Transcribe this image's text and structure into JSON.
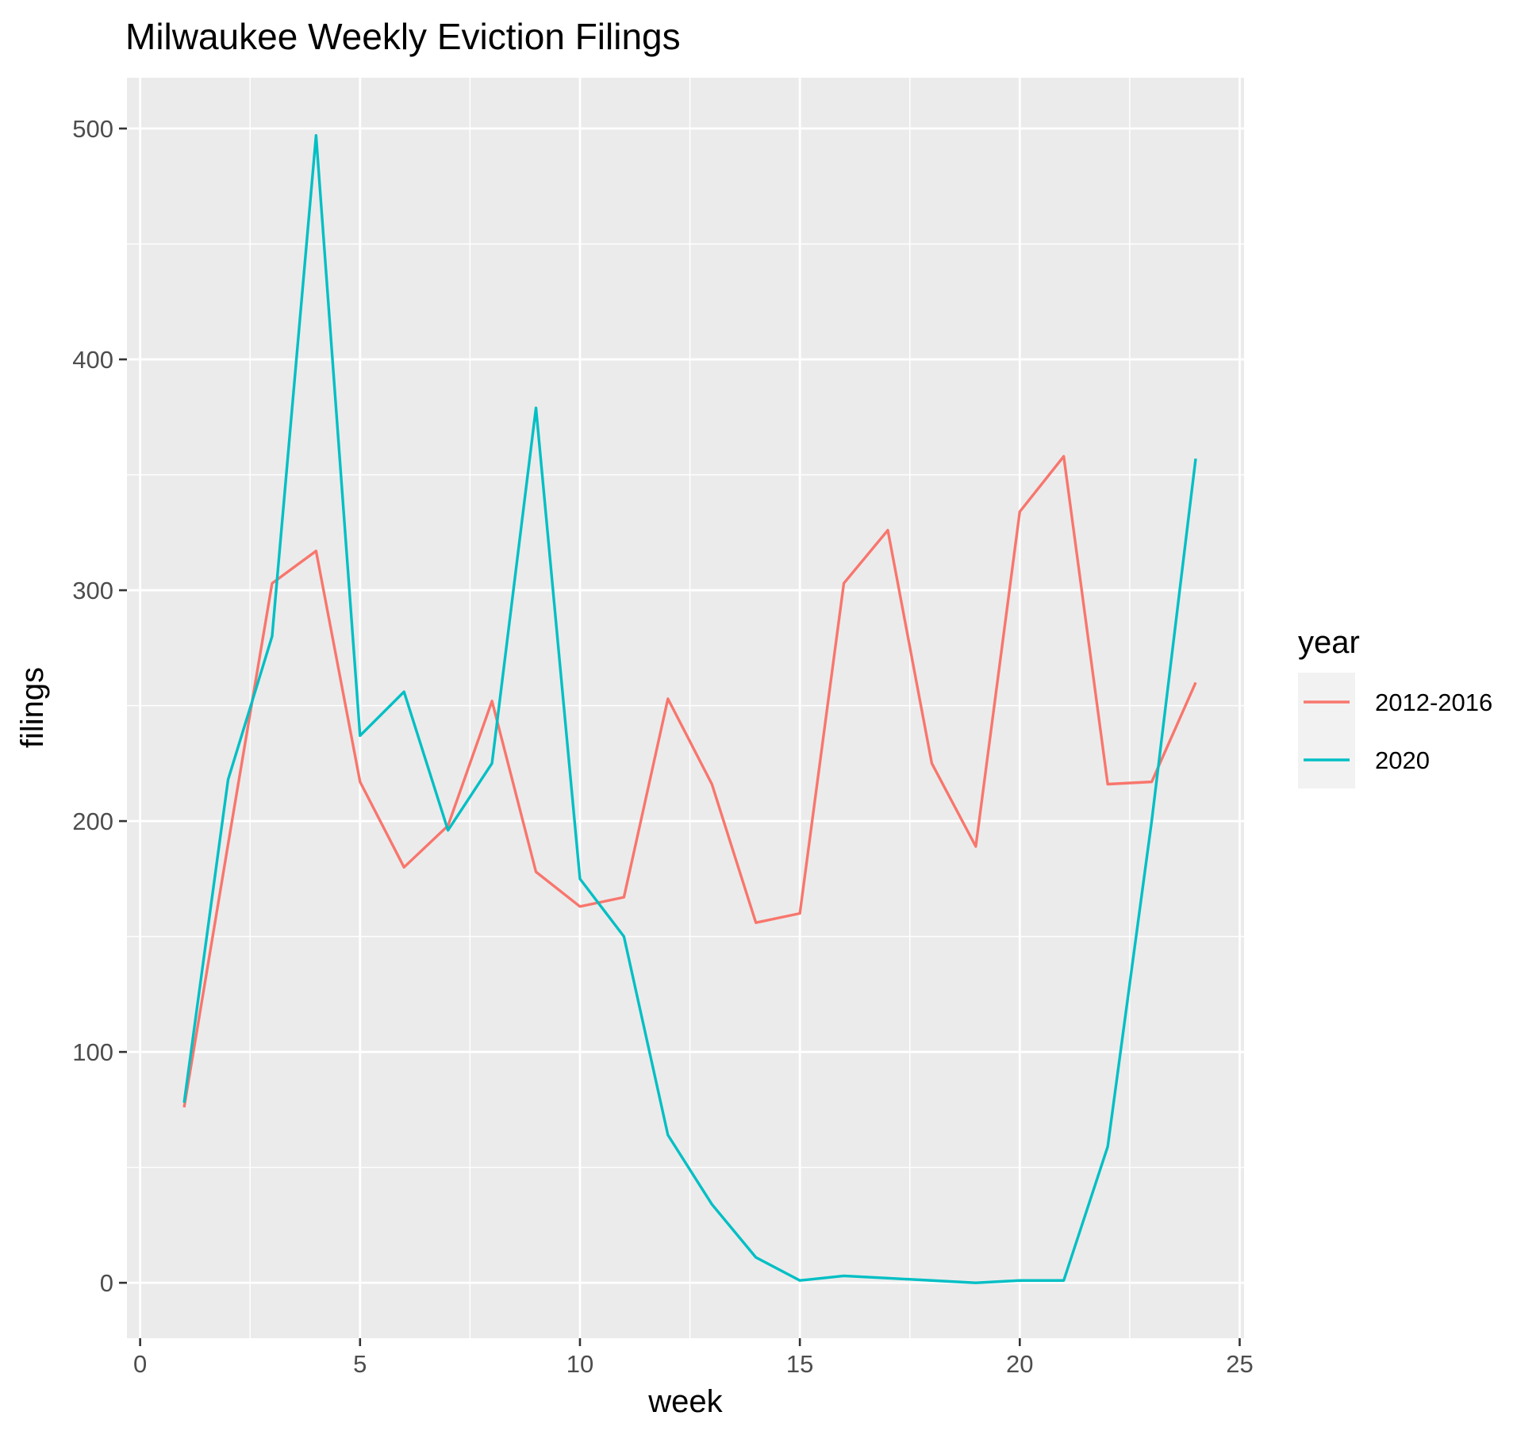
{
  "chart_data": {
    "type": "line",
    "title": "Milwaukee Weekly Eviction Filings",
    "xlabel": "week",
    "ylabel": "filings",
    "xlim": [
      -0.3,
      25.1
    ],
    "ylim": [
      -24,
      522
    ],
    "x_ticks": [
      0,
      5,
      10,
      15,
      20,
      25
    ],
    "y_ticks": [
      0,
      100,
      200,
      300,
      400,
      500
    ],
    "grid": true,
    "legend": {
      "title": "year",
      "position": "right"
    },
    "x": [
      1,
      2,
      3,
      4,
      5,
      6,
      7,
      8,
      9,
      10,
      11,
      12,
      13,
      14,
      15,
      16,
      17,
      18,
      19,
      20,
      21,
      22,
      23,
      24
    ],
    "series": [
      {
        "name": "2012-2016",
        "color": "#F8766D",
        "values": [
          76,
          190,
          303,
          317,
          217,
          180,
          198,
          252,
          178,
          163,
          167,
          253,
          216,
          156,
          160,
          303,
          326,
          225,
          189,
          334,
          358,
          216,
          217,
          260
        ]
      },
      {
        "name": "2020",
        "color": "#00BFC4",
        "values": [
          78,
          218,
          280,
          497,
          237,
          256,
          196,
          225,
          379,
          175,
          150,
          64,
          34,
          11,
          1,
          3,
          2,
          1,
          0,
          1,
          1,
          59,
          200,
          357
        ]
      }
    ]
  }
}
